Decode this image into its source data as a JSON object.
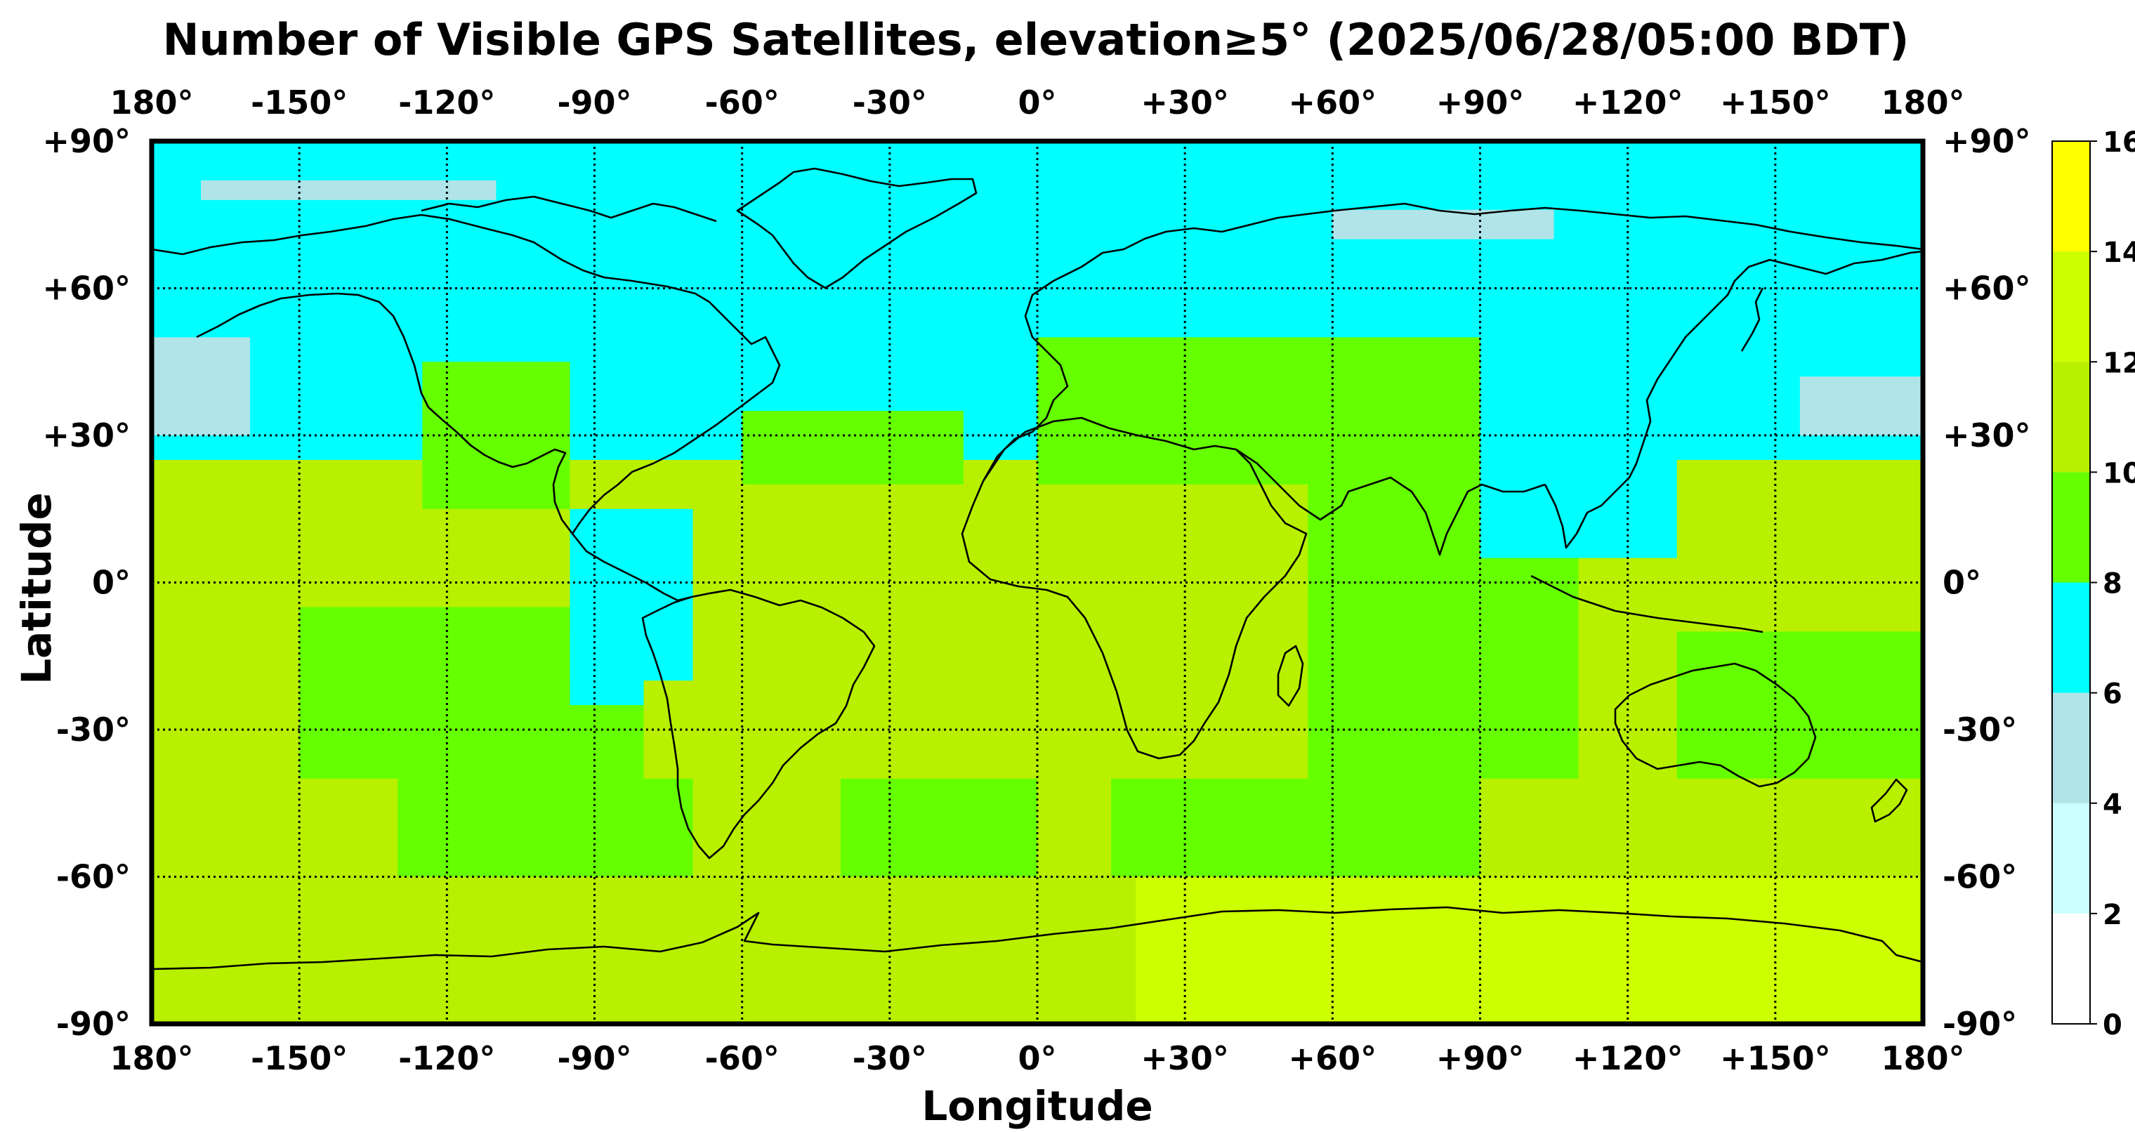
{
  "title": "Number of Visible GPS Satellites, elevation≥5° (2025/06/28/05:00 BDT)",
  "xlabel": "Longitude",
  "ylabel": "Latitude",
  "x_ticks": [
    "180°",
    "-150°",
    "-120°",
    "-90°",
    "-60°",
    "-30°",
    "0°",
    "+30°",
    "+60°",
    "+90°",
    "+120°",
    "+150°",
    "180°"
  ],
  "y_ticks": [
    "+90°",
    "+60°",
    "+30°",
    "0°",
    "-30°",
    "-60°",
    "-90°"
  ],
  "colorbar": {
    "ticks": [
      "0",
      "2",
      "4",
      "6",
      "8",
      "10",
      "12",
      "14",
      "16"
    ],
    "colors": [
      "#ffffff",
      "#ccffff",
      "#b0e4e8",
      "#00ffff",
      "#66ff00",
      "#b8f000",
      "#ccff00",
      "#ffff00"
    ]
  },
  "chart_data": {
    "type": "heatmap",
    "title": "Number of Visible GPS Satellites, elevation≥5° (2025/06/28/05:00 BDT)",
    "xlabel": "Longitude",
    "ylabel": "Latitude",
    "xlim": [
      -180,
      180
    ],
    "ylim": [
      -90,
      90
    ],
    "grid": true,
    "colorbar_range": [
      0,
      16
    ],
    "colorbar_position": "right",
    "regions": [
      {
        "lon": [
          -180,
          180
        ],
        "lat": [
          -90,
          -62
        ],
        "value": 11
      },
      {
        "lon": [
          -180,
          180
        ],
        "lat": [
          -62,
          25
        ],
        "value": 11
      },
      {
        "lon": [
          -180,
          180
        ],
        "lat": [
          25,
          90
        ],
        "value": 7
      },
      {
        "lon": [
          -150,
          -80
        ],
        "lat": [
          -40,
          -5
        ],
        "value": 9
      },
      {
        "lon": [
          -130,
          -70
        ],
        "lat": [
          -60,
          -40
        ],
        "value": 9
      },
      {
        "lon": [
          -125,
          -95
        ],
        "lat": [
          15,
          45
        ],
        "value": 9
      },
      {
        "lon": [
          -95,
          -70
        ],
        "lat": [
          -20,
          15
        ],
        "value": 7
      },
      {
        "lon": [
          -60,
          -15
        ],
        "lat": [
          20,
          35
        ],
        "value": 9
      },
      {
        "lon": [
          -40,
          0
        ],
        "lat": [
          -60,
          -40
        ],
        "value": 9
      },
      {
        "lon": [
          0,
          90
        ],
        "lat": [
          20,
          50
        ],
        "value": 9
      },
      {
        "lon": [
          55,
          110
        ],
        "lat": [
          -40,
          20
        ],
        "value": 9
      },
      {
        "lon": [
          15,
          90
        ],
        "lat": [
          -60,
          -40
        ],
        "value": 9
      },
      {
        "lon": [
          90,
          130
        ],
        "lat": [
          5,
          30
        ],
        "value": 7
      },
      {
        "lon": [
          130,
          180
        ],
        "lat": [
          -40,
          -10
        ],
        "value": 9
      },
      {
        "lon": [
          20,
          180
        ],
        "lat": [
          -90,
          -60
        ],
        "value": 13
      },
      {
        "lon": [
          -95,
          -80
        ],
        "lat": [
          -25,
          -10
        ],
        "value": 7
      },
      {
        "lon": [
          -180,
          -160
        ],
        "lat": [
          30,
          50
        ],
        "value": 5
      },
      {
        "lon": [
          -170,
          -110
        ],
        "lat": [
          78,
          82
        ],
        "value": 5
      },
      {
        "lon": [
          60,
          105
        ],
        "lat": [
          70,
          76
        ],
        "value": 5
      },
      {
        "lon": [
          155,
          180
        ],
        "lat": [
          30,
          42
        ],
        "value": 5
      }
    ]
  }
}
